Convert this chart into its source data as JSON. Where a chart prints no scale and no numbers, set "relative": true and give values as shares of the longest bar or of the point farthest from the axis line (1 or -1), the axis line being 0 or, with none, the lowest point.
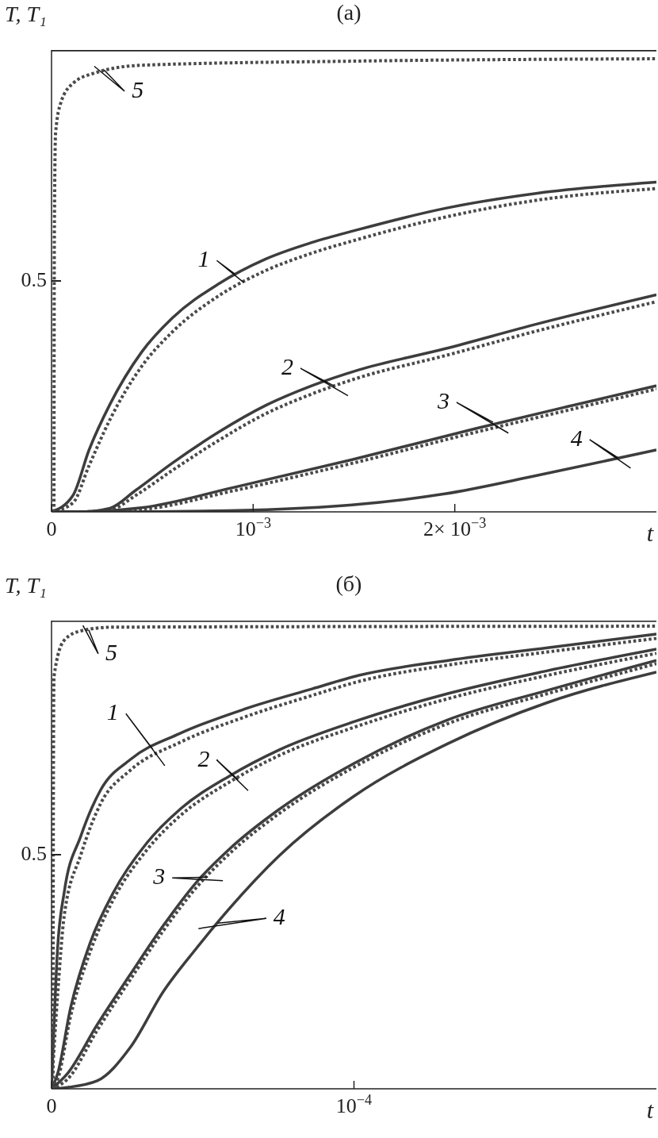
{
  "chart_data": [
    {
      "type": "line",
      "title": "(а)",
      "xlabel": "t",
      "ylabel": "T, T₁",
      "marker": "none",
      "xlim": [
        0,
        0.003
      ],
      "xticks": [
        0,
        {
          "value": 0.001,
          "label": "10$^{−3}$"
        },
        {
          "value": 0.002,
          "label": "2× 10$^{−3}$"
        }
      ],
      "relative": true,
      "series": [
        {
          "color": "#4a4a4a",
          "line_style": "dotted",
          "x": [
            0,
            0.000107,
            0.000186,
            0.00029,
            0.000447,
            0.0006,
            0.00083,
            0.00106,
            0.00129,
            0.00152,
            0.00195,
            0.00241,
            0.003
          ],
          "values": [
            0,
            0.02,
            0.1,
            0.2,
            0.315,
            0.39,
            0.468,
            0.522,
            0.56,
            0.59,
            0.638,
            0.675,
            0.7
          ]
        },
        {
          "color": "#3d3d3d",
          "line_style": "solid",
          "x": [
            0,
            0.000107,
            0.000186,
            0.00029,
            0.000447,
            0.0006,
            0.00083,
            0.00106,
            0.00129,
            0.00152,
            0.00195,
            0.00241,
            0.003
          ],
          "values": [
            0,
            0.036,
            0.134,
            0.233,
            0.346,
            0.42,
            0.494,
            0.547,
            0.583,
            0.611,
            0.657,
            0.69,
            0.714
          ]
        },
        {
          "color": "#4a4a4a",
          "line_style": "dotted",
          "x": [
            0,
            0.000138,
            0.00029,
            0.000415,
            0.0006,
            0.00083,
            0.00106,
            0.00129,
            0.00152,
            0.00195,
            0.00241,
            0.003
          ],
          "values": [
            0,
            0,
            0.004,
            0.035,
            0.09,
            0.155,
            0.212,
            0.255,
            0.29,
            0.338,
            0.392,
            0.455
          ]
        },
        {
          "color": "#3d3d3d",
          "line_style": "solid",
          "x": [
            0,
            0.000138,
            0.00029,
            0.000415,
            0.0006,
            0.00083,
            0.00106,
            0.00129,
            0.00152,
            0.00195,
            0.00241,
            0.003
          ],
          "values": [
            0,
            0,
            0.008,
            0.046,
            0.106,
            0.173,
            0.23,
            0.273,
            0.307,
            0.353,
            0.407,
            0.47
          ]
        },
        {
          "color": "#4a4a4a",
          "line_style": "dotted",
          "x": [
            0,
            0.0002,
            0.000447,
            0.000905,
            0.00149,
            0.0021,
            0.00256,
            0.003
          ],
          "values": [
            0,
            0,
            0.005,
            0.046,
            0.105,
            0.172,
            0.22,
            0.266
          ]
        },
        {
          "color": "#3d3d3d",
          "line_style": "solid",
          "x": [
            0,
            0.0002,
            0.000447,
            0.000905,
            0.00149,
            0.0021,
            0.00256,
            0.003
          ],
          "values": [
            0,
            0.001,
            0.009,
            0.053,
            0.113,
            0.18,
            0.228,
            0.273
          ]
        },
        {
          "color": "#3d3d3d",
          "line_style": "solid",
          "x": [
            0,
            0.0003,
            0.001,
            0.00149,
            0.00195,
            0.00241,
            0.003
          ],
          "values": [
            0,
            0,
            0.004,
            0.015,
            0.039,
            0.079,
            0.134
          ]
        },
        {
          "color": "#4a4a4a",
          "line_style": "dotted",
          "x": [
            1.2e-05,
            1.4e-05,
            2e-05,
            4.7e-05,
            0.000107,
            0.000213,
            0.000447,
            0.00152,
            0.003
          ],
          "values": [
            0,
            0.6,
            0.82,
            0.887,
            0.928,
            0.95,
            0.967,
            0.976,
            0.981
          ]
        },
        {
          "color": "#222222",
          "line_style": "solid",
          "x": [
            0,
            0.003
          ],
          "values": [
            1,
            1
          ]
        }
      ],
      "annotations": [
        "0.5",
        {
          "text": "1",
          "x": 0.00091,
          "y": 0.515
        },
        {
          "text": "2",
          "x": 0.0014,
          "y": 0.273
        },
        {
          "text": "3",
          "x": 0.00219,
          "y": 0.194
        },
        {
          "text": "4",
          "x": 0.00281,
          "y": 0.117
        },
        {
          "text": "5",
          "x": 0.00026,
          "y": 0.957
        }
      ]
    },
    {
      "type": "line",
      "title": "(б)",
      "xlabel": "t",
      "ylabel": "T, T₁",
      "marker": "none",
      "xlim": [
        0,
        0.0002
      ],
      "xticks": [
        0,
        {
          "value": 0.0001,
          "label": "10$^{−4}$"
        }
      ],
      "relative": true,
      "series": [
        {
          "color": "#4a4a4a",
          "line_style": "dotted",
          "x": [
            0,
            2e-06,
            4.2e-06,
            9.7e-06,
            1.63e-05,
            2.6e-05,
            4.25e-05,
            6.43e-05,
            8.61e-05,
            0.0001016,
            0.0001312,
            0.000164,
            0.0002
          ],
          "values": [
            0,
            0.2,
            0.37,
            0.5,
            0.61,
            0.68,
            0.74,
            0.795,
            0.84,
            0.87,
            0.905,
            0.933,
            0.962
          ]
        },
        {
          "color": "#3d3d3d",
          "line_style": "solid",
          "x": [
            0,
            2e-06,
            4.2e-06,
            9.7e-06,
            1.63e-05,
            2.6e-05,
            4.25e-05,
            6.43e-05,
            8.61e-05,
            0.0001016,
            0.0001312,
            0.000164,
            0.0002
          ],
          "values": [
            0,
            0.3,
            0.42,
            0.54,
            0.639,
            0.703,
            0.759,
            0.812,
            0.854,
            0.883,
            0.915,
            0.942,
            0.971
          ]
        },
        {
          "color": "#4a4a4a",
          "line_style": "dotted",
          "x": [
            0,
            2e-06,
            6.3e-06,
            1.29e-05,
            2.05e-05,
            3.15e-05,
            4.25e-05,
            5.88e-05,
            7.53e-05,
            0.0001,
            0.000131,
            0.000164,
            0.0002
          ],
          "values": [
            0,
            0.02,
            0.155,
            0.295,
            0.405,
            0.51,
            0.583,
            0.655,
            0.712,
            0.772,
            0.833,
            0.883,
            0.93
          ]
        },
        {
          "color": "#3d3d3d",
          "line_style": "solid",
          "x": [
            0,
            2e-06,
            6.3e-06,
            1.29e-05,
            2.05e-05,
            3.15e-05,
            4.25e-05,
            5.88e-05,
            7.53e-05,
            0.0001,
            0.000131,
            0.000164,
            0.0002
          ],
          "values": [
            0,
            0.032,
            0.173,
            0.314,
            0.42,
            0.525,
            0.597,
            0.668,
            0.724,
            0.784,
            0.844,
            0.893,
            0.939
          ]
        },
        {
          "color": "#4a4a4a",
          "line_style": "dotted",
          "x": [
            0,
            5.2e-06,
            1.51e-05,
            2.6e-05,
            3.7e-05,
            4.79e-05,
            5.88e-05,
            7.53e-05,
            0.0001,
            0.000131,
            0.000164,
            0.0002
          ],
          "values": [
            0,
            0.02,
            0.125,
            0.233,
            0.338,
            0.43,
            0.502,
            0.588,
            0.687,
            0.78,
            0.844,
            0.908
          ]
        },
        {
          "color": "#3d3d3d",
          "line_style": "solid",
          "x": [
            0,
            5.2e-06,
            1.51e-05,
            2.6e-05,
            3.7e-05,
            4.79e-05,
            5.88e-05,
            7.53e-05,
            0.0001,
            0.000131,
            0.000164,
            0.0002
          ],
          "values": [
            0,
            0.032,
            0.137,
            0.244,
            0.349,
            0.441,
            0.512,
            0.597,
            0.695,
            0.788,
            0.851,
            0.915
          ]
        },
        {
          "color": "#3d3d3d",
          "line_style": "solid",
          "x": [
            0,
            5.2e-06,
            1.51e-05,
            2.6e-05,
            3.7e-05,
            4.79e-05,
            5.88e-05,
            7.53e-05,
            0.0001,
            0.000131,
            0.000164,
            0.0002
          ],
          "values": [
            0,
            0.003,
            0.017,
            0.088,
            0.208,
            0.3,
            0.385,
            0.498,
            0.625,
            0.737,
            0.825,
            0.89
          ]
        },
        {
          "color": "#4a4a4a",
          "line_style": "dotted",
          "x": [
            5e-07,
            6e-07,
            8e-07,
            4.2e-06,
            9.7e-06,
            2.05e-05,
            0.0002
          ],
          "values": [
            0,
            0.6,
            0.88,
            0.958,
            0.978,
            0.986,
            0.988
          ]
        },
        {
          "color": "#3d3d3d",
          "line_style": "solid",
          "x": [
            0,
            0.0002
          ],
          "values": [
            1,
            1
          ]
        }
      ],
      "annotations": [
        "0.5",
        {
          "text": "1",
          "x": 3.35e-05,
          "y": 0.725
        },
        {
          "text": "2",
          "x": 6.17e-05,
          "y": 0.66
        },
        {
          "text": "3",
          "x": 5.17e-05,
          "y": 0.452
        },
        {
          "text": "4",
          "x": 5.5e-05,
          "y": 0.354
        },
        {
          "text": "5",
          "x": 1.23e-05,
          "y": 0.98
        }
      ]
    }
  ]
}
